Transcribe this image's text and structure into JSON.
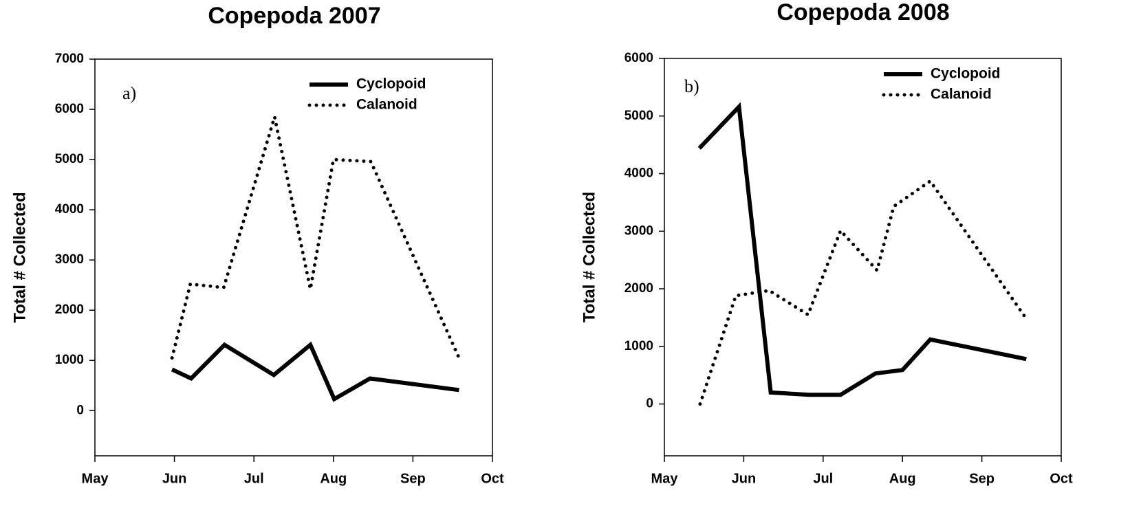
{
  "chart_data": [
    {
      "type": "line",
      "title": "Copepoda 2007",
      "y_label": "Total # Collected",
      "annotation": "a)",
      "xlim": [
        5,
        10
      ],
      "xticks": [
        {
          "value": 5,
          "label": "May"
        },
        {
          "value": 6,
          "label": "Jun"
        },
        {
          "value": 7,
          "label": "Jul"
        },
        {
          "value": 8,
          "label": "Aug"
        },
        {
          "value": 9,
          "label": "Sep"
        },
        {
          "value": 10,
          "label": "Oct"
        }
      ],
      "ylim": [
        -900,
        7000
      ],
      "yticks": [
        0,
        1000,
        2000,
        3000,
        4000,
        5000,
        6000,
        7000
      ],
      "legend": "upper right",
      "series": [
        {
          "name": "Cyclopoid",
          "color": "#000000",
          "style": "solid",
          "x": [
            5.97,
            6.21,
            6.63,
            7.25,
            7.71,
            8.01,
            8.46,
            9.58
          ],
          "values": [
            820,
            640,
            1310,
            710,
            1310,
            230,
            640,
            410
          ]
        },
        {
          "name": "Calanoid",
          "color": "#000000",
          "style": "dotted",
          "x": [
            5.97,
            6.2,
            6.62,
            7.26,
            7.71,
            8.0,
            8.47,
            9.58
          ],
          "values": [
            1050,
            2520,
            2450,
            5850,
            2420,
            5000,
            4960,
            1050
          ]
        }
      ]
    },
    {
      "type": "line",
      "title": "Copepoda 2008",
      "y_label": "Total # Collected",
      "annotation": "b)",
      "xlim": [
        5,
        10
      ],
      "xticks": [
        {
          "value": 5,
          "label": "May"
        },
        {
          "value": 6,
          "label": "Jun"
        },
        {
          "value": 7,
          "label": "Jul"
        },
        {
          "value": 8,
          "label": "Aug"
        },
        {
          "value": 9,
          "label": "Sep"
        },
        {
          "value": 10,
          "label": "Oct"
        }
      ],
      "ylim": [
        -900,
        6000
      ],
      "yticks": [
        0,
        1000,
        2000,
        3000,
        4000,
        5000,
        6000
      ],
      "legend": "upper right",
      "series": [
        {
          "name": "Cyclopoid",
          "color": "#000000",
          "style": "solid",
          "x": [
            5.44,
            5.94,
            6.34,
            6.82,
            7.22,
            7.66,
            8.0,
            8.35,
            9.56
          ],
          "values": [
            4440,
            5160,
            200,
            160,
            160,
            530,
            590,
            1120,
            780
          ]
        },
        {
          "name": "Calanoid",
          "color": "#000000",
          "style": "dotted",
          "x": [
            5.45,
            5.9,
            6.32,
            6.81,
            7.22,
            7.68,
            7.89,
            8.35,
            9.54
          ],
          "values": [
            0,
            1880,
            1970,
            1550,
            3010,
            2320,
            3430,
            3870,
            1520
          ]
        }
      ]
    }
  ]
}
